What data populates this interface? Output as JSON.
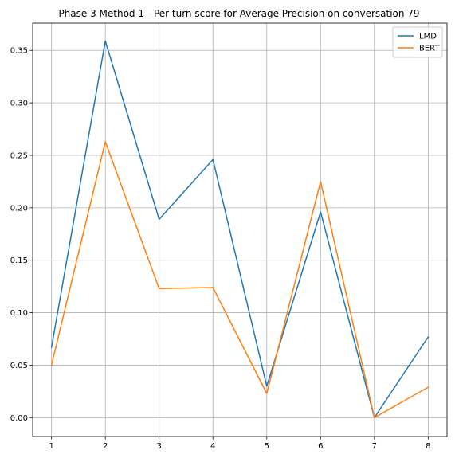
{
  "chart_data": {
    "type": "line",
    "title": "Phase 3 Method 1 - Per turn score for Average Precision on conversation 79",
    "xlabel": "",
    "ylabel": "",
    "x": [
      1,
      2,
      3,
      4,
      5,
      6,
      7,
      8
    ],
    "xlim": [
      0.65,
      8.35
    ],
    "ylim": [
      -0.018,
      0.376
    ],
    "xticks": [
      1,
      2,
      3,
      4,
      5,
      6,
      7,
      8
    ],
    "xtick_labels": [
      "1",
      "2",
      "3",
      "4",
      "5",
      "6",
      "7",
      "8"
    ],
    "yticks": [
      0.0,
      0.05,
      0.1,
      0.15,
      0.2,
      0.25,
      0.3,
      0.35
    ],
    "ytick_labels": [
      "0.00",
      "0.05",
      "0.10",
      "0.15",
      "0.20",
      "0.25",
      "0.30",
      "0.35"
    ],
    "grid": true,
    "legend_position": "top-right",
    "series": [
      {
        "name": "LMD",
        "color": "#1f77b4",
        "values": [
          0.067,
          0.359,
          0.189,
          0.246,
          0.03,
          0.196,
          0.0,
          0.077
        ]
      },
      {
        "name": "BERT",
        "color": "#ff7f0e",
        "values": [
          0.05,
          0.263,
          0.123,
          0.124,
          0.023,
          0.225,
          0.0,
          0.029
        ]
      }
    ]
  }
}
